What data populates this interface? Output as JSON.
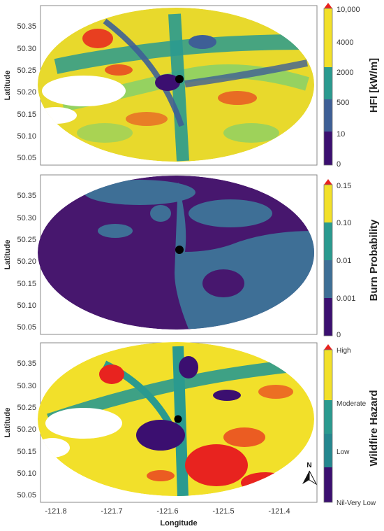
{
  "chart_data": [
    {
      "type": "heatmap",
      "panel": "top",
      "xlabel": "",
      "ylabel": "Latitude",
      "ytick_labels": [
        "50.35",
        "50.30",
        "50.25",
        "50.20",
        "50.15",
        "50.10",
        "50.05"
      ],
      "yticks": [
        50.35,
        50.3,
        50.25,
        50.2,
        50.15,
        50.1,
        50.05
      ],
      "xlim": [
        -121.84,
        -121.34
      ],
      "ylim": [
        50.045,
        50.385
      ],
      "grid": false,
      "point_marker": {
        "lon": -121.585,
        "lat": 50.232
      },
      "colorbar": {
        "title": "HFI [kW/m]",
        "tick_labels": [
          "10,000",
          "4000",
          "2000",
          "500",
          "10",
          "0"
        ],
        "colors": [
          "#3b0f70",
          "#3e5f96",
          "#2a9a8f",
          "#7fcf6e",
          "#f2e02a"
        ],
        "overflow_color": "#e8231f"
      }
    },
    {
      "type": "heatmap",
      "panel": "middle",
      "xlabel": "",
      "ylabel": "Latitude",
      "ytick_labels": [
        "50.35",
        "50.30",
        "50.25",
        "50.20",
        "50.15",
        "50.10",
        "50.05"
      ],
      "yticks": [
        50.35,
        50.3,
        50.25,
        50.2,
        50.15,
        50.1,
        50.05
      ],
      "xlim": [
        -121.84,
        -121.34
      ],
      "ylim": [
        50.045,
        50.385
      ],
      "grid": false,
      "point_marker": {
        "lon": -121.585,
        "lat": 50.232
      },
      "colorbar": {
        "title": "Burn Probability",
        "tick_labels": [
          "0.15",
          "0.10",
          "0.01",
          "0.001",
          "0"
        ],
        "colors": [
          "#3b0f70",
          "#3e6f96",
          "#2a9a8f",
          "#f2e02a"
        ],
        "overflow_color": "#e8231f"
      }
    },
    {
      "type": "heatmap",
      "panel": "bottom",
      "xlabel": "Longitude",
      "ylabel": "Latitude",
      "xtick_labels": [
        "-121.8",
        "-121.7",
        "-121.6",
        "-121.5",
        "-121.4"
      ],
      "xticks": [
        -121.8,
        -121.7,
        -121.6,
        -121.5,
        -121.4
      ],
      "ytick_labels": [
        "50.35",
        "50.30",
        "50.25",
        "50.20",
        "50.15",
        "50.10",
        "50.05"
      ],
      "yticks": [
        50.35,
        50.3,
        50.25,
        50.2,
        50.15,
        50.1,
        50.05
      ],
      "xlim": [
        -121.84,
        -121.34
      ],
      "ylim": [
        50.045,
        50.385
      ],
      "grid": false,
      "point_marker": {
        "lon": -121.585,
        "lat": 50.232
      },
      "north_arrow_label": "N",
      "colorbar": {
        "title": "Wildfire Hazard",
        "tick_labels": [
          "High",
          "Moderate",
          "Low",
          "Nil-Very Low"
        ],
        "colors": [
          "#3b0f70",
          "#2a9a8f",
          "#f2e02a"
        ],
        "overflow_color": "#e8231f"
      }
    }
  ],
  "palette": {
    "purple": "#3b0f70",
    "blue": "#3e5f96",
    "teal": "#2a9a8f",
    "green": "#7fcf6e",
    "yellow": "#f2e02a",
    "red": "#e8231f",
    "marker": "#000000"
  }
}
